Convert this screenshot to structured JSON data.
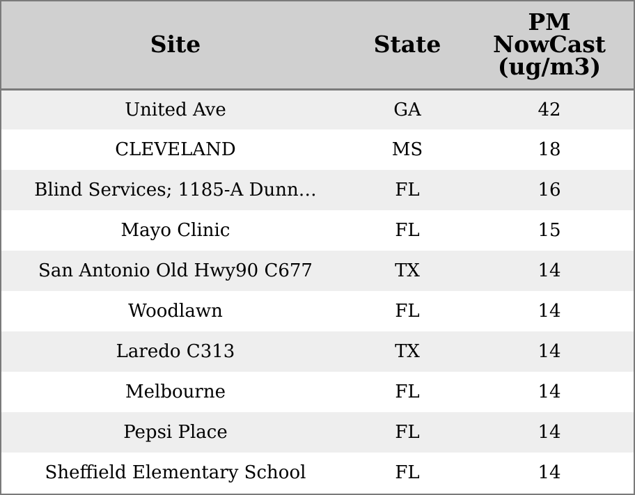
{
  "chart_data": {
    "type": "table",
    "columns": [
      "Site",
      "State",
      "PM NowCast (ug/m3)"
    ],
    "rows": [
      [
        "United Ave",
        "GA",
        "42"
      ],
      [
        "CLEVELAND",
        "MS",
        "18"
      ],
      [
        "Blind Services; 1185-A Dunn…",
        "FL",
        "16"
      ],
      [
        "Mayo Clinic",
        "FL",
        "15"
      ],
      [
        "San Antonio Old Hwy90 C677",
        "TX",
        "14"
      ],
      [
        "Woodlawn",
        "FL",
        "14"
      ],
      [
        "Laredo C313",
        "TX",
        "14"
      ],
      [
        "Melbourne",
        "FL",
        "14"
      ],
      [
        "Pepsi Place",
        "FL",
        "14"
      ],
      [
        "Sheffield Elementary School",
        "FL",
        "14"
      ]
    ]
  },
  "colors": {
    "header_bg": "#d0d0d0",
    "row_odd_bg": "#eeeeee",
    "row_even_bg": "#ffffff",
    "border": "#7a7a7a"
  }
}
